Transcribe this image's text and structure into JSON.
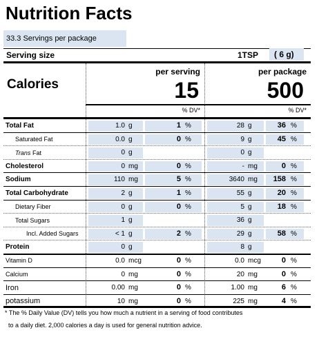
{
  "header": {
    "title": "Nutrition Facts",
    "servings": "33.3 Servings per package",
    "serving_size_label": "Serving size",
    "serving_size": "1TSP",
    "serving_weight": "( 6 g)"
  },
  "columns": {
    "per_serving": "per serving",
    "per_package": "per package",
    "dv_header": "% DV*"
  },
  "calories": {
    "label": "Calories",
    "per_serving": "15",
    "per_package": "500"
  },
  "rows": [
    {
      "name": "Total Fat",
      "serving": [
        "1.0",
        "g",
        "1",
        "%"
      ],
      "package": [
        "28",
        "g",
        "36",
        "%"
      ]
    },
    {
      "name": "Saturated Fat",
      "serving": [
        "0.0",
        "g",
        "0",
        "%"
      ],
      "package": [
        "9",
        "g",
        "45",
        "%"
      ]
    },
    {
      "name_italic": "Trans",
      "name": "Fat",
      "serving": [
        "0",
        "g"
      ],
      "package": [
        "0",
        "g"
      ]
    },
    {
      "name": "Cholesterol",
      "serving": [
        "0",
        "mg",
        "0",
        "%"
      ],
      "package": [
        "-",
        "mg",
        "0",
        "%"
      ]
    },
    {
      "name": "Sodium",
      "serving": [
        "110",
        "mg",
        "5",
        "%"
      ],
      "package": [
        "3640",
        "mg",
        "158",
        "%"
      ]
    },
    {
      "name": "Total Carbohydrate",
      "serving": [
        "2",
        "g",
        "1",
        "%"
      ],
      "package": [
        "55",
        "g",
        "20",
        "%"
      ]
    },
    {
      "name": "Dietary Fiber",
      "serving": [
        "0",
        "g",
        "0",
        "%"
      ],
      "package": [
        "5",
        "g",
        "18",
        "%"
      ]
    },
    {
      "name": "Total Sugars",
      "serving": [
        "1",
        "g"
      ],
      "package": [
        "36",
        "g"
      ]
    },
    {
      "name": "Incl. Added Sugars",
      "serving": [
        "< 1",
        "g",
        "2",
        "%"
      ],
      "package": [
        "29",
        "g",
        "58",
        "%"
      ]
    },
    {
      "name": "Protein",
      "serving": [
        "0",
        "g"
      ],
      "package": [
        "8",
        "g"
      ]
    },
    {
      "name": "Vitamin D",
      "serving": [
        "0.0",
        "mcg",
        "0",
        "%"
      ],
      "package": [
        "0.0",
        "mcg",
        "0",
        "%"
      ]
    },
    {
      "name": "Calcium",
      "serving": [
        "0",
        "mg",
        "0",
        "%"
      ],
      "package": [
        "20",
        "mg",
        "0",
        "%"
      ]
    },
    {
      "name": "Iron",
      "serving": [
        "0.00",
        "mg",
        "0",
        "%"
      ],
      "package": [
        "1.00",
        "mg",
        "6",
        "%"
      ]
    },
    {
      "name": "potassium",
      "serving": [
        "10",
        "mg",
        "0",
        "%"
      ],
      "package": [
        "225",
        "mg",
        "4",
        "%"
      ]
    }
  ],
  "footnote": [
    "* The % Daily Value (DV) tells you how much a nutrient in a serving of food contributes",
    "to a daily diet. 2,000 calories a day is used for general nutrition advice."
  ]
}
